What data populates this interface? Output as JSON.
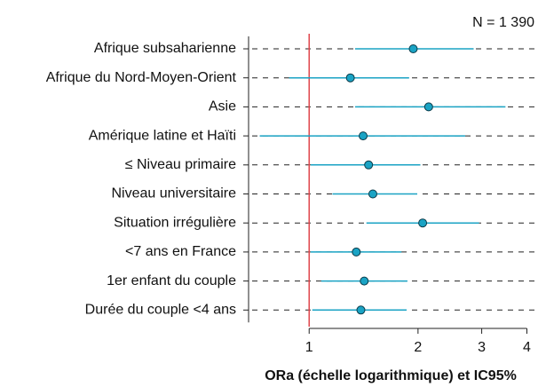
{
  "chart_data": {
    "type": "forest",
    "annotation": "N = 1 390",
    "xlabel": "ORa (échelle logarithmique) et IC95%",
    "xscale": "log",
    "categories": [
      "Afrique subsaharienne",
      "Afrique du Nord-Moyen-Orient",
      "Asie",
      "Amérique latine et Haïti",
      "≤ Niveau primaire",
      "Niveau universitaire",
      "Situation irrégulière",
      "<7 ans en France",
      "1er enfant du couple",
      "Durée du couple <4 ans"
    ],
    "values": [
      1.94,
      1.3,
      2.14,
      1.41,
      1.46,
      1.5,
      2.06,
      1.35,
      1.42,
      1.39
    ],
    "lower": [
      1.34,
      0.88,
      1.34,
      0.73,
      1.01,
      1.16,
      1.44,
      1.01,
      1.08,
      1.02
    ],
    "upper": [
      2.85,
      1.89,
      3.49,
      2.7,
      2.03,
      1.99,
      2.95,
      1.8,
      1.87,
      1.86
    ],
    "color": "#1aa3c4",
    "reference": 1,
    "reference_color": "#e0474c",
    "xlim": [
      0.68,
      4.15
    ],
    "xticks": [
      1,
      2,
      3,
      4
    ],
    "grid": true
  }
}
